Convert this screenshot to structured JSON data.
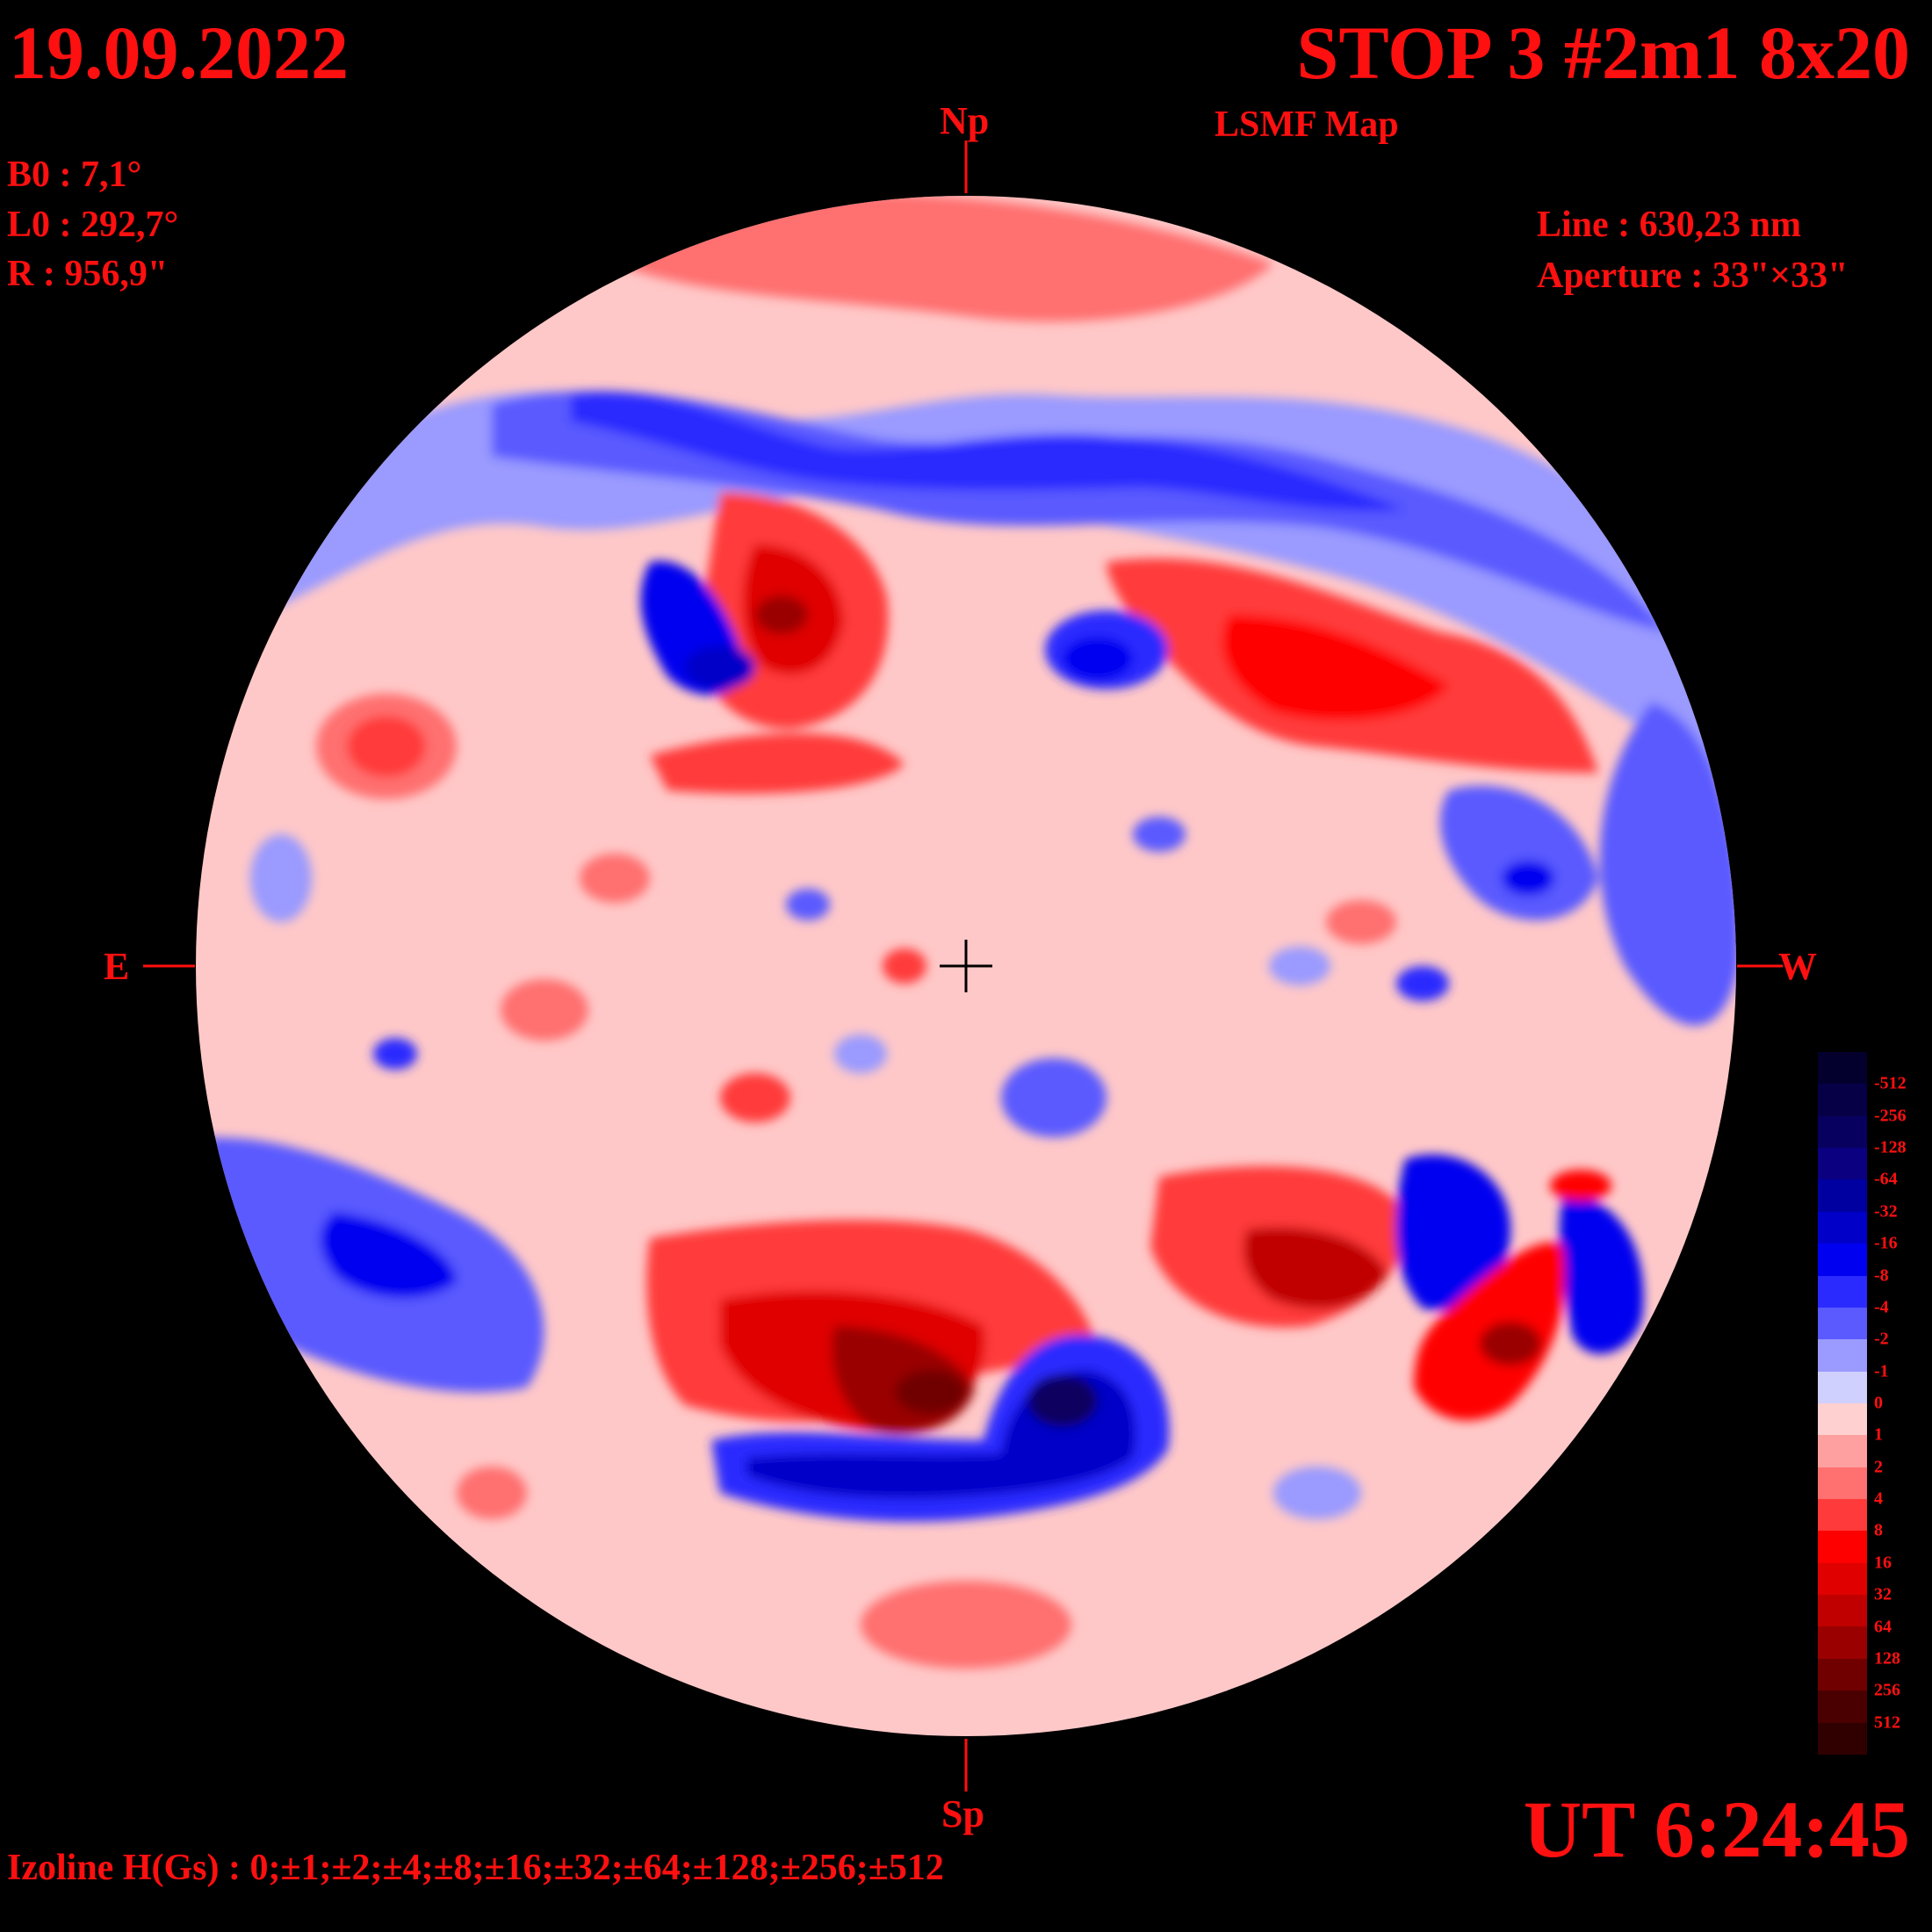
{
  "header": {
    "date": "19.09.2022",
    "title": "STOP 3 #2m1 8x20",
    "subtitle": "LSMF  Map"
  },
  "params": {
    "b0": "B0 : 7,1°",
    "l0": "L0 : 292,7°",
    "r": "R  : 956,9\""
  },
  "instrument": {
    "line": "Line :  630,23 nm",
    "aperture": "Aperture : 33\"×33\""
  },
  "directions": {
    "north": "Np",
    "south": "Sp",
    "east": "E",
    "west": "W"
  },
  "time": "UT 6:24:45",
  "izoline": "Izoline H(Gs) : 0;±1;±2;±4;±8;±16;±32;±64;±128;±256;±512",
  "colorscale": {
    "labels": [
      "-512",
      "-256",
      "-128",
      "-64",
      "-32",
      "-16",
      "-8",
      "-4",
      "-2",
      "-1",
      "0",
      "1",
      "2",
      "4",
      "8",
      "16",
      "32",
      "64",
      "128",
      "256",
      "512"
    ],
    "colors": [
      "#04002e",
      "#060046",
      "#08005e",
      "#0a0080",
      "#0000a0",
      "#0000c8",
      "#0000f0",
      "#2a2aff",
      "#5a5aff",
      "#9a9aff",
      "#d0d0ff",
      "#ffd0d0",
      "#ffa0a0",
      "#ff7070",
      "#ff3a3a",
      "#ff0000",
      "#e00000",
      "#c00000",
      "#9a0000",
      "#700000",
      "#4a0000",
      "#300000"
    ]
  }
}
